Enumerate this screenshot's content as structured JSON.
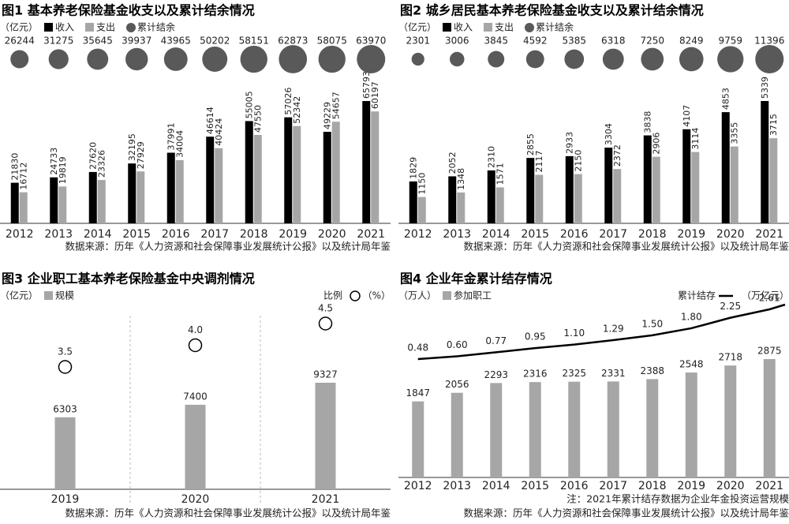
{
  "chart_data": [
    {
      "type": "bar",
      "title": "图1 基本养老保险基金收支以及累计结余情况",
      "unit": "（亿元）",
      "categories": [
        "2012",
        "2013",
        "2014",
        "2015",
        "2016",
        "2017",
        "2018",
        "2019",
        "2020",
        "2021"
      ],
      "series": [
        {
          "name": "收入",
          "color": "#000000",
          "values": [
            21830,
            24733,
            27620,
            32195,
            37991,
            46614,
            55005,
            57026,
            49229,
            65793
          ]
        },
        {
          "name": "支出",
          "color": "#a6a6a6",
          "values": [
            16712,
            19819,
            23326,
            27929,
            34004,
            40424,
            47550,
            52342,
            54657,
            60197
          ]
        },
        {
          "name": "累计结余",
          "color": "#595959",
          "type": "bubble",
          "values": [
            26244,
            31275,
            35645,
            39937,
            43965,
            50202,
            58151,
            62873,
            58075,
            63970
          ]
        }
      ],
      "source": "数据来源：历年《人力资源和社会保障事业发展统计公报》以及统计局年鉴"
    },
    {
      "type": "bar",
      "title": "图2 城乡居民基本养老保险基金收支以及累计结余情况",
      "unit": "（亿元）",
      "categories": [
        "2012",
        "2013",
        "2014",
        "2015",
        "2016",
        "2017",
        "2018",
        "2019",
        "2020",
        "2021"
      ],
      "series": [
        {
          "name": "收入",
          "color": "#000000",
          "values": [
            1829,
            2052,
            2310,
            2855,
            2933,
            3304,
            3838,
            4107,
            4853,
            5339
          ]
        },
        {
          "name": "支出",
          "color": "#a6a6a6",
          "values": [
            1150,
            1348,
            1571,
            2117,
            2150,
            2372,
            2906,
            3114,
            3355,
            3715
          ]
        },
        {
          "name": "累计结余",
          "color": "#595959",
          "type": "bubble",
          "values": [
            2301,
            3006,
            3845,
            4592,
            5385,
            6318,
            7250,
            8249,
            9759,
            11396
          ]
        }
      ],
      "source": "数据来源：历年《人力资源和社会保障事业发展统计公报》以及统计局年鉴"
    },
    {
      "type": "bar",
      "title": "图3 企业职工基本养老保险基金中央调剂情况",
      "unit": "（亿元）",
      "y2_unit": "（%）",
      "categories": [
        "2019",
        "2020",
        "2021"
      ],
      "series": [
        {
          "name": "规模",
          "color": "#a6a6a6",
          "values": [
            6303,
            7400,
            9327
          ]
        },
        {
          "name": "比例",
          "color": "#000000",
          "type": "scatter",
          "axis": "y2",
          "values": [
            3.5,
            4.0,
            4.5
          ],
          "value_labels": [
            "3.5",
            "4.0",
            "4.5"
          ]
        }
      ],
      "source": "数据来源：历年《人力资源和社会保障事业发展统计公报》以及统计局年鉴"
    },
    {
      "type": "bar",
      "title": "图4 企业年金累计结存情况",
      "unit": "（万人）",
      "y2_unit": "（万亿元）",
      "categories": [
        "2012",
        "2013",
        "2014",
        "2015",
        "2016",
        "2017",
        "2018",
        "2019",
        "2020",
        "2021"
      ],
      "series": [
        {
          "name": "参加职工",
          "color": "#a6a6a6",
          "values": [
            1847,
            2056,
            2293,
            2316,
            2325,
            2331,
            2388,
            2548,
            2718,
            2875
          ]
        },
        {
          "name": "累计结存",
          "color": "#000000",
          "type": "line",
          "axis": "y2",
          "values": [
            0.48,
            0.6,
            0.77,
            0.95,
            1.1,
            1.29,
            1.5,
            1.8,
            2.25,
            2.61
          ],
          "value_labels": [
            "0.48",
            "0.60",
            "0.77",
            "0.95",
            "1.10",
            "1.29",
            "1.50",
            "1.80",
            "2.25",
            "2.61"
          ]
        }
      ],
      "note": "注：2021年累计结存数据为企业年金投资运营规模",
      "source": "数据来源：历年《人力资源和社会保障事业发展统计公报》以及统计局年鉴"
    }
  ]
}
